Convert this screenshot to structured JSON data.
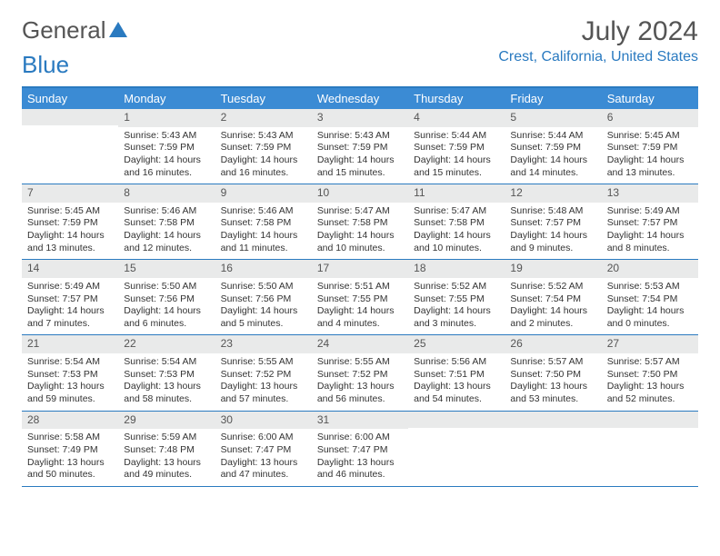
{
  "logo": {
    "text_gray": "General",
    "text_blue": "Blue"
  },
  "title": {
    "month": "July 2024",
    "location": "Crest, California, United States"
  },
  "colors": {
    "accent": "#2a7ac0",
    "header_bg": "#3b8bd4",
    "daynum_bg": "#e9eaea",
    "text": "#333",
    "logo_gray": "#555"
  },
  "day_names": [
    "Sunday",
    "Monday",
    "Tuesday",
    "Wednesday",
    "Thursday",
    "Friday",
    "Saturday"
  ],
  "weeks": [
    [
      {
        "n": "",
        "sr": "",
        "ss": "",
        "dl": ""
      },
      {
        "n": "1",
        "sr": "Sunrise: 5:43 AM",
        "ss": "Sunset: 7:59 PM",
        "dl": "Daylight: 14 hours and 16 minutes."
      },
      {
        "n": "2",
        "sr": "Sunrise: 5:43 AM",
        "ss": "Sunset: 7:59 PM",
        "dl": "Daylight: 14 hours and 16 minutes."
      },
      {
        "n": "3",
        "sr": "Sunrise: 5:43 AM",
        "ss": "Sunset: 7:59 PM",
        "dl": "Daylight: 14 hours and 15 minutes."
      },
      {
        "n": "4",
        "sr": "Sunrise: 5:44 AM",
        "ss": "Sunset: 7:59 PM",
        "dl": "Daylight: 14 hours and 15 minutes."
      },
      {
        "n": "5",
        "sr": "Sunrise: 5:44 AM",
        "ss": "Sunset: 7:59 PM",
        "dl": "Daylight: 14 hours and 14 minutes."
      },
      {
        "n": "6",
        "sr": "Sunrise: 5:45 AM",
        "ss": "Sunset: 7:59 PM",
        "dl": "Daylight: 14 hours and 13 minutes."
      }
    ],
    [
      {
        "n": "7",
        "sr": "Sunrise: 5:45 AM",
        "ss": "Sunset: 7:59 PM",
        "dl": "Daylight: 14 hours and 13 minutes."
      },
      {
        "n": "8",
        "sr": "Sunrise: 5:46 AM",
        "ss": "Sunset: 7:58 PM",
        "dl": "Daylight: 14 hours and 12 minutes."
      },
      {
        "n": "9",
        "sr": "Sunrise: 5:46 AM",
        "ss": "Sunset: 7:58 PM",
        "dl": "Daylight: 14 hours and 11 minutes."
      },
      {
        "n": "10",
        "sr": "Sunrise: 5:47 AM",
        "ss": "Sunset: 7:58 PM",
        "dl": "Daylight: 14 hours and 10 minutes."
      },
      {
        "n": "11",
        "sr": "Sunrise: 5:47 AM",
        "ss": "Sunset: 7:58 PM",
        "dl": "Daylight: 14 hours and 10 minutes."
      },
      {
        "n": "12",
        "sr": "Sunrise: 5:48 AM",
        "ss": "Sunset: 7:57 PM",
        "dl": "Daylight: 14 hours and 9 minutes."
      },
      {
        "n": "13",
        "sr": "Sunrise: 5:49 AM",
        "ss": "Sunset: 7:57 PM",
        "dl": "Daylight: 14 hours and 8 minutes."
      }
    ],
    [
      {
        "n": "14",
        "sr": "Sunrise: 5:49 AM",
        "ss": "Sunset: 7:57 PM",
        "dl": "Daylight: 14 hours and 7 minutes."
      },
      {
        "n": "15",
        "sr": "Sunrise: 5:50 AM",
        "ss": "Sunset: 7:56 PM",
        "dl": "Daylight: 14 hours and 6 minutes."
      },
      {
        "n": "16",
        "sr": "Sunrise: 5:50 AM",
        "ss": "Sunset: 7:56 PM",
        "dl": "Daylight: 14 hours and 5 minutes."
      },
      {
        "n": "17",
        "sr": "Sunrise: 5:51 AM",
        "ss": "Sunset: 7:55 PM",
        "dl": "Daylight: 14 hours and 4 minutes."
      },
      {
        "n": "18",
        "sr": "Sunrise: 5:52 AM",
        "ss": "Sunset: 7:55 PM",
        "dl": "Daylight: 14 hours and 3 minutes."
      },
      {
        "n": "19",
        "sr": "Sunrise: 5:52 AM",
        "ss": "Sunset: 7:54 PM",
        "dl": "Daylight: 14 hours and 2 minutes."
      },
      {
        "n": "20",
        "sr": "Sunrise: 5:53 AM",
        "ss": "Sunset: 7:54 PM",
        "dl": "Daylight: 14 hours and 0 minutes."
      }
    ],
    [
      {
        "n": "21",
        "sr": "Sunrise: 5:54 AM",
        "ss": "Sunset: 7:53 PM",
        "dl": "Daylight: 13 hours and 59 minutes."
      },
      {
        "n": "22",
        "sr": "Sunrise: 5:54 AM",
        "ss": "Sunset: 7:53 PM",
        "dl": "Daylight: 13 hours and 58 minutes."
      },
      {
        "n": "23",
        "sr": "Sunrise: 5:55 AM",
        "ss": "Sunset: 7:52 PM",
        "dl": "Daylight: 13 hours and 57 minutes."
      },
      {
        "n": "24",
        "sr": "Sunrise: 5:55 AM",
        "ss": "Sunset: 7:52 PM",
        "dl": "Daylight: 13 hours and 56 minutes."
      },
      {
        "n": "25",
        "sr": "Sunrise: 5:56 AM",
        "ss": "Sunset: 7:51 PM",
        "dl": "Daylight: 13 hours and 54 minutes."
      },
      {
        "n": "26",
        "sr": "Sunrise: 5:57 AM",
        "ss": "Sunset: 7:50 PM",
        "dl": "Daylight: 13 hours and 53 minutes."
      },
      {
        "n": "27",
        "sr": "Sunrise: 5:57 AM",
        "ss": "Sunset: 7:50 PM",
        "dl": "Daylight: 13 hours and 52 minutes."
      }
    ],
    [
      {
        "n": "28",
        "sr": "Sunrise: 5:58 AM",
        "ss": "Sunset: 7:49 PM",
        "dl": "Daylight: 13 hours and 50 minutes."
      },
      {
        "n": "29",
        "sr": "Sunrise: 5:59 AM",
        "ss": "Sunset: 7:48 PM",
        "dl": "Daylight: 13 hours and 49 minutes."
      },
      {
        "n": "30",
        "sr": "Sunrise: 6:00 AM",
        "ss": "Sunset: 7:47 PM",
        "dl": "Daylight: 13 hours and 47 minutes."
      },
      {
        "n": "31",
        "sr": "Sunrise: 6:00 AM",
        "ss": "Sunset: 7:47 PM",
        "dl": "Daylight: 13 hours and 46 minutes."
      },
      {
        "n": "",
        "sr": "",
        "ss": "",
        "dl": ""
      },
      {
        "n": "",
        "sr": "",
        "ss": "",
        "dl": ""
      },
      {
        "n": "",
        "sr": "",
        "ss": "",
        "dl": ""
      }
    ]
  ]
}
